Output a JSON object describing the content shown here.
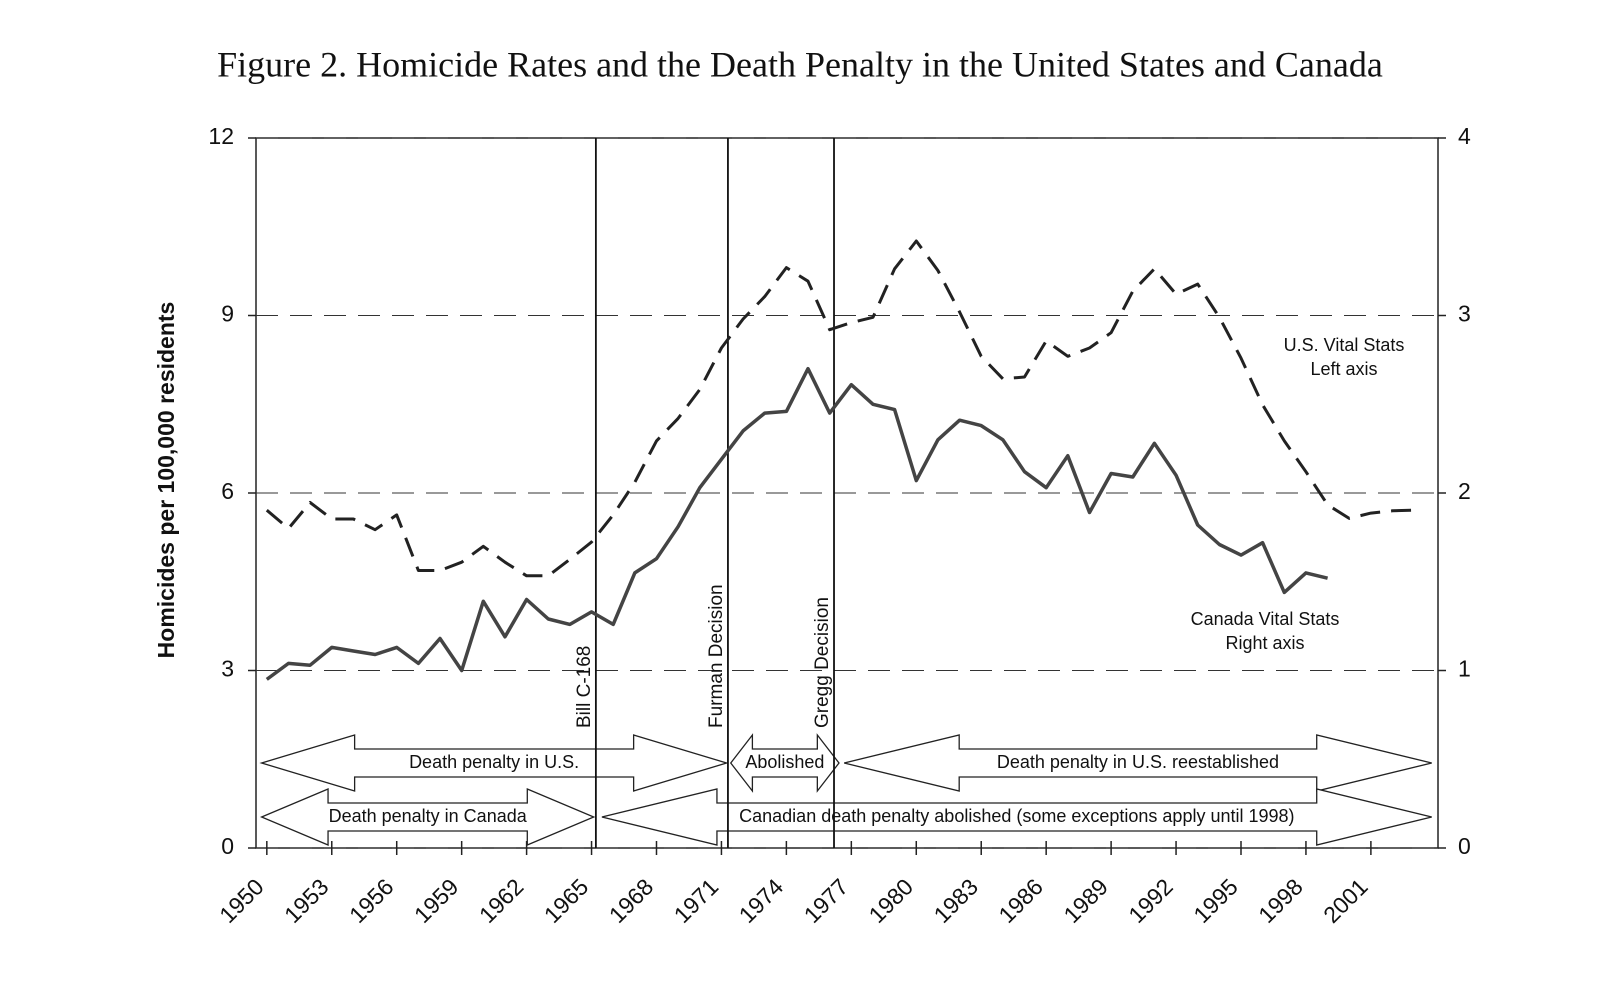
{
  "chart_data": {
    "type": "line",
    "title": "Figure 2. Homicide Rates and the Death Penalty in the United States and Canada",
    "y_label": "Homicides per 100,000 residents",
    "x": [
      1950,
      1951,
      1952,
      1953,
      1954,
      1955,
      1956,
      1957,
      1958,
      1959,
      1960,
      1961,
      1962,
      1963,
      1964,
      1965,
      1966,
      1967,
      1968,
      1969,
      1970,
      1971,
      1972,
      1973,
      1974,
      1975,
      1976,
      1977,
      1978,
      1979,
      1980,
      1981,
      1982,
      1983,
      1984,
      1985,
      1986,
      1987,
      1988,
      1989,
      1990,
      1991,
      1992,
      1993,
      1994,
      1995,
      1996,
      1997,
      1998,
      1999,
      2000,
      2001,
      2002,
      2003
    ],
    "series": [
      {
        "name": "U.S. Vital Stats",
        "note": "Left axis",
        "color": "#222222",
        "dashed": true,
        "values": [
          5.71,
          5.4,
          5.84,
          5.56,
          5.56,
          5.38,
          5.63,
          4.69,
          4.69,
          4.83,
          5.1,
          4.83,
          4.6,
          4.6,
          4.88,
          5.17,
          5.63,
          6.18,
          6.88,
          7.26,
          7.75,
          8.45,
          8.94,
          9.32,
          9.81,
          9.58,
          8.76,
          8.88,
          8.97,
          9.79,
          10.26,
          9.76,
          9.06,
          8.31,
          7.93,
          7.96,
          8.57,
          8.31,
          8.45,
          8.71,
          9.41,
          9.79,
          9.36,
          9.53,
          8.97,
          8.28,
          7.49,
          6.88,
          6.36,
          5.8,
          5.57,
          5.66,
          5.7,
          5.71
        ]
      },
      {
        "name": "Canada Vital Stats",
        "note": "Right axis",
        "color": "#444444",
        "dashed": false,
        "axis": "y2",
        "values": [
          0.95,
          1.04,
          1.03,
          1.13,
          1.11,
          1.09,
          1.13,
          1.04,
          1.18,
          1.0,
          1.39,
          1.19,
          1.4,
          1.29,
          1.26,
          1.33,
          1.26,
          1.55,
          1.63,
          1.81,
          2.03,
          2.19,
          2.35,
          2.45,
          2.46,
          2.7,
          2.45,
          2.61,
          2.5,
          2.47,
          2.07,
          2.3,
          2.41,
          2.38,
          2.3,
          2.12,
          2.03,
          2.21,
          1.89,
          2.11,
          2.09,
          2.28,
          2.1,
          1.82,
          1.71,
          1.65,
          1.72,
          1.44,
          1.55,
          1.52,
          null,
          null,
          null,
          null
        ]
      }
    ],
    "xlim": [
      1949.5,
      2004.1
    ],
    "xticks": [
      1950,
      1953,
      1956,
      1959,
      1962,
      1965,
      1968,
      1971,
      1974,
      1977,
      1980,
      1983,
      1986,
      1989,
      1992,
      1995,
      1998,
      2001
    ],
    "ylim": [
      0,
      12
    ],
    "yticks": [
      0,
      3,
      6,
      9,
      12
    ],
    "y2lim": [
      0,
      4
    ],
    "y2ticks": [
      0,
      1,
      2,
      3,
      4
    ],
    "grid": true,
    "events": [
      {
        "x": 1965.2,
        "label": "Bill C-168"
      },
      {
        "x": 1971.3,
        "label": "Furman Decision"
      },
      {
        "x": 1976.2,
        "label": "Gregg Decision"
      }
    ],
    "periods": [
      {
        "label": "Death penalty in U.S.",
        "start": 1949.76,
        "end": 1971.24,
        "row": 1
      },
      {
        "label": "Abolished",
        "start": 1971.43,
        "end": 1976.43,
        "row": 1
      },
      {
        "label": "Death penalty in U.S. reestablished",
        "start": 1976.67,
        "end": 2003.81,
        "row": 1
      },
      {
        "label": "Death penalty in Canada",
        "start": 1949.76,
        "end": 1965.1,
        "row": 2
      },
      {
        "label": "Canadian death penalty abolished (some exceptions apply until 1998)",
        "start": 1965.48,
        "end": 2003.81,
        "row": 2
      }
    ]
  }
}
